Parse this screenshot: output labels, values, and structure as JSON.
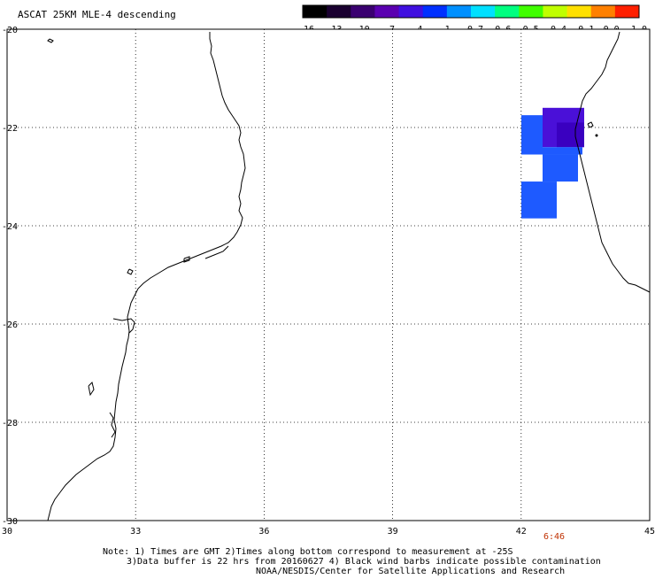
{
  "title": "ASCAT 25KM MLE-4 descending",
  "colorbar": {
    "labels": [
      "-16",
      "-13",
      "-10",
      "-7",
      "-4",
      "-1",
      "-0.7",
      "-0.6",
      "-0.5",
      "-0.4",
      "-0.1",
      "0.0",
      "1.0"
    ],
    "colors": [
      "#000000",
      "#1a0030",
      "#3a0070",
      "#5a00b0",
      "#4010e0",
      "#0030ff",
      "#0090ff",
      "#00e0ff",
      "#00ff80",
      "#40ff00",
      "#c0ff00",
      "#ffe000",
      "#ff8000",
      "#ff2000"
    ]
  },
  "map": {
    "lon_ticks": [
      "30",
      "33",
      "36",
      "39",
      "42",
      "45"
    ],
    "lat_ticks": [
      "-20",
      "-22",
      "-24",
      "-26",
      "-28",
      "-30"
    ],
    "lon_range": [
      30,
      45
    ],
    "lat_range": [
      -30,
      -20
    ],
    "grid": true,
    "cells": [
      {
        "lon0": 43.7,
        "lon1": 44.5,
        "lat0": -21.6,
        "lat1": -22.4,
        "color": "#4a10d8"
      },
      {
        "lon0": 44.0,
        "lon1": 44.45,
        "lat0": -21.9,
        "lat1": -22.4,
        "color": "#3a00c0"
      },
      {
        "lon0": 43.2,
        "lon1": 43.7,
        "lat0": -21.75,
        "lat1": -22.55,
        "color": "#1e5aff"
      },
      {
        "lon0": 43.7,
        "lon1": 44.4,
        "lat0": -22.4,
        "lat1": -22.55,
        "color": "#1e5aff"
      },
      {
        "lon0": 43.7,
        "lon1": 44.3,
        "lat0": -22.55,
        "lat1": -23.1,
        "color": "#1e5aff"
      },
      {
        "lon0": 43.2,
        "lon1": 44.0,
        "lat0": -23.1,
        "lat1": -23.85,
        "color": "#1e5aff"
      }
    ]
  },
  "time_label": "6:46",
  "notes": [
    "Note: 1) Times are GMT 2)Times along bottom correspond to measurement at -25S",
    "3)Data buffer is 22 hrs from 20160627 4) Black wind barbs indicate possible contamination",
    "NOAA/NESDIS/Center for Satellite Applications and Research"
  ]
}
